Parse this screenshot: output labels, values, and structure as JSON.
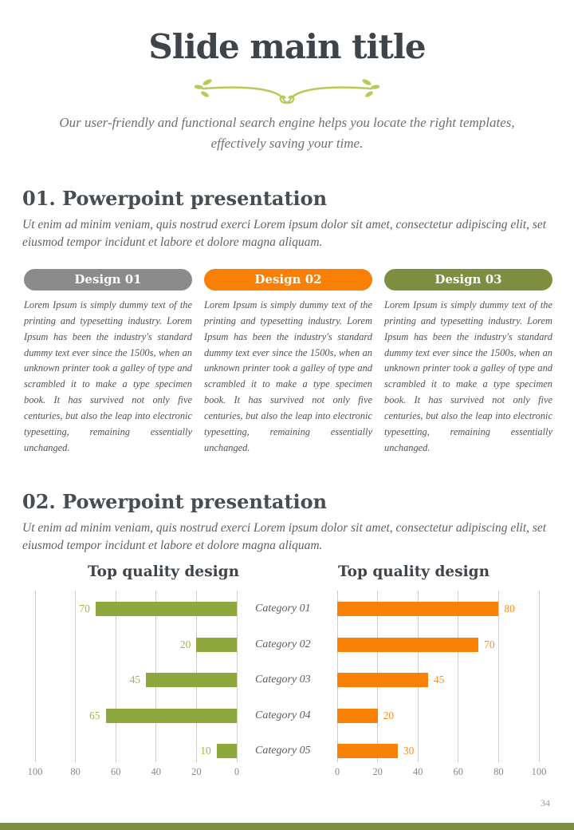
{
  "header": {
    "title": "Slide main title",
    "subtitle": "Our user-friendly and functional search engine helps you locate the right templates, effectively saving your time.",
    "flourish_color": "#b5cb55"
  },
  "section1": {
    "heading": "01. Powerpoint presentation",
    "description": "Ut enim ad minim veniam, quis nostrud exerci  Lorem ipsum dolor sit amet, consectetur adipiscing elit, set eiusmod tempor incidunt et labore et dolore magna aliquam."
  },
  "section2": {
    "heading": "02. Powerpoint presentation",
    "description": "Ut enim ad minim veniam, quis nostrud exerci  Lorem ipsum dolor sit amet, consectetur adipiscing elit, set eiusmod tempor incidunt et labore et dolore magna aliquam."
  },
  "designs": [
    {
      "label": "Design 01",
      "color": "#8b8b8b",
      "body": "Lorem Ipsum is simply dummy text of the printing and typesetting industry. Lorem Ipsum has been the industry's standard dummy text ever since the 1500s, when an unknown printer took a galley of type and scrambled it to make a type specimen book. It has survived not only five centuries, but also the leap into electronic typesetting, remaining essentially unchanged."
    },
    {
      "label": "Design 02",
      "color": "#f97f05",
      "body": "Lorem Ipsum is simply dummy text of the printing and typesetting industry. Lorem Ipsum has been the industry's standard dummy text ever since the 1500s, when an unknown printer took a galley of type and scrambled it to make a type specimen book. It has survived not only five centuries, but also the leap into electronic typesetting, remaining essentially unchanged."
    },
    {
      "label": "Design 03",
      "color": "#7e8e41",
      "body": "Lorem Ipsum is simply dummy text of the printing and typesetting industry. Lorem Ipsum has been the industry's standard dummy text ever since the 1500s, when an unknown printer took a galley of type and scrambled it to make a type specimen book. It has survived not only five centuries, but also the leap into electronic typesetting, remaining essentially unchanged."
    }
  ],
  "chart_data": [
    {
      "type": "bar",
      "orientation": "horizontal",
      "direction": "right-to-left",
      "title": "Top quality design",
      "categories": [
        "Category 01",
        "Category 02",
        "Category 03",
        "Category 04",
        "Category 05"
      ],
      "values": [
        70,
        20,
        45,
        65,
        10
      ],
      "bar_color": "#8ea83d",
      "value_label_color": "#9cba45",
      "axis_ticks": [
        100,
        80,
        60,
        40,
        20,
        0
      ],
      "xlim": [
        0,
        100
      ],
      "grid": true,
      "legend": "none",
      "value_labels_position": "outside-left"
    },
    {
      "type": "bar",
      "orientation": "horizontal",
      "direction": "left-to-right",
      "title": "Top quality design",
      "categories": [
        "Category 01",
        "Category 02",
        "Category 03",
        "Category 04",
        "Category 05"
      ],
      "values": [
        80,
        70,
        45,
        20,
        30
      ],
      "bar_color": "#f98105",
      "value_label_color": "#f98f1f",
      "axis_ticks": [
        0,
        20,
        40,
        60,
        80,
        100
      ],
      "xlim": [
        0,
        100
      ],
      "grid": true,
      "legend": "none",
      "value_labels_position": "outside-right"
    }
  ],
  "footer": {
    "page_number": "34",
    "bar_color": "#7e8e41"
  }
}
